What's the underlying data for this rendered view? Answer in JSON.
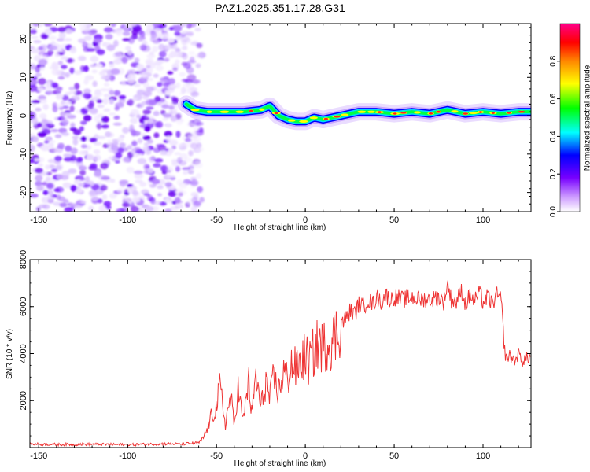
{
  "title": "PAZ1.2025.351.17.28.G31",
  "chart_data": [
    {
      "type": "heatmap",
      "xlabel": "Height of straight line (km)",
      "ylabel": "Frequency (Hz)",
      "xlim": [
        -155,
        127
      ],
      "ylim": [
        -25,
        24
      ],
      "x_ticks": [
        -150,
        -100,
        -50,
        0,
        50,
        100
      ],
      "x_tick_labels": [
        "-150",
        "-100",
        "-50",
        "0",
        "50",
        "100"
      ],
      "y_ticks": [
        -20,
        -10,
        0,
        10,
        20
      ],
      "y_tick_labels": [
        "-20",
        "-10",
        "0",
        "10",
        "20"
      ],
      "noise_region_x": [
        -155,
        -67
      ],
      "signal_track": {
        "x": [
          -67,
          -62,
          -55,
          -45,
          -35,
          -25,
          -20,
          -15,
          -10,
          -5,
          0,
          5,
          10,
          20,
          30,
          40,
          50,
          60,
          70,
          80,
          90,
          100,
          110,
          120,
          127
        ],
        "freq": [
          3,
          1.5,
          1,
          1,
          1,
          1.5,
          2.5,
          0,
          -1,
          -1.5,
          -1.5,
          -0.5,
          -1,
          0,
          1,
          1,
          0.5,
          1,
          0.5,
          1.5,
          0.5,
          1,
          0.5,
          1,
          1
        ]
      },
      "colorbar": {
        "label": "Normalized spectral amplitude",
        "range": [
          0.0,
          1.0
        ],
        "ticks": [
          0.0,
          0.2,
          0.4,
          0.6,
          0.8
        ],
        "tick_labels": [
          "0.0",
          "0.2",
          "0.4",
          "0.6",
          "0.8"
        ],
        "colors": [
          "#ffffff",
          "#cc99ff",
          "#7700ff",
          "#0000ff",
          "#00ffff",
          "#00ff00",
          "#ffff00",
          "#ff8800",
          "#ff0000",
          "#ff0088"
        ]
      }
    },
    {
      "type": "line",
      "xlabel": "Height of straight line (km)",
      "ylabel": "SNR (10 * v/v)",
      "xlim": [
        -155,
        127
      ],
      "ylim": [
        0,
        8000
      ],
      "x_ticks": [
        -150,
        -100,
        -50,
        0,
        50,
        100
      ],
      "x_tick_labels": [
        "-150",
        "-100",
        "-50",
        "0",
        "50",
        "100"
      ],
      "y_ticks": [
        2000,
        4000,
        6000,
        8000
      ],
      "y_tick_labels": [
        "2000",
        "4000",
        "6000",
        "8000"
      ],
      "color": "#ee3333",
      "series": [
        {
          "name": "SNR",
          "x": [
            -155,
            -140,
            -120,
            -100,
            -80,
            -70,
            -60,
            -58,
            -55,
            -53,
            -50,
            -48,
            -45,
            -42,
            -40,
            -38,
            -35,
            -32,
            -30,
            -28,
            -25,
            -22,
            -20,
            -18,
            -15,
            -12,
            -10,
            -8,
            -5,
            -2,
            0,
            2,
            5,
            8,
            10,
            12,
            15,
            18,
            20,
            23,
            25,
            28,
            30,
            33,
            35,
            38,
            40,
            43,
            45,
            48,
            50,
            55,
            60,
            65,
            70,
            75,
            78,
            80,
            82,
            85,
            88,
            90,
            93,
            95,
            98,
            100,
            103,
            105,
            108,
            110,
            111,
            112,
            113,
            115,
            118,
            120,
            122,
            125,
            127
          ],
          "y": [
            150,
            130,
            140,
            120,
            160,
            150,
            200,
            350,
            800,
            1300,
            1700,
            2600,
            1000,
            2200,
            900,
            2600,
            1100,
            2900,
            1300,
            3100,
            1700,
            2900,
            2000,
            2900,
            2400,
            3300,
            2800,
            3600,
            3300,
            3700,
            3900,
            3600,
            4100,
            4500,
            4200,
            4500,
            4500,
            4900,
            5300,
            5500,
            5800,
            5700,
            6100,
            6000,
            6300,
            6100,
            6400,
            6200,
            6500,
            6300,
            6400,
            6300,
            6400,
            6300,
            6300,
            6400,
            6200,
            7000,
            6300,
            6200,
            6700,
            6100,
            6500,
            6200,
            6600,
            6200,
            6400,
            6100,
            6500,
            6300,
            5500,
            4200,
            3800,
            3900,
            3700,
            4000,
            3700,
            3800,
            3900
          ]
        }
      ]
    }
  ]
}
